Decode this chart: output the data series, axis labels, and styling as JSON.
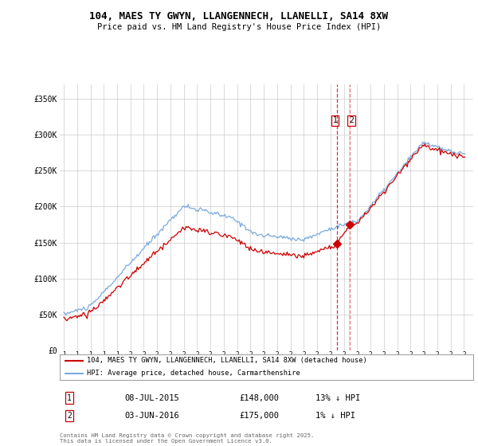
{
  "title1": "104, MAES TY GWYN, LLANGENNECH, LLANELLI, SA14 8XW",
  "title2": "Price paid vs. HM Land Registry's House Price Index (HPI)",
  "legend_label_red": "104, MAES TY GWYN, LLANGENNECH, LLANELLI, SA14 8XW (detached house)",
  "legend_label_blue": "HPI: Average price, detached house, Carmarthenshire",
  "purchase1_date": "08-JUL-2015",
  "purchase1_price": 148000,
  "purchase1_label": "13% ↓ HPI",
  "purchase2_date": "03-JUN-2016",
  "purchase2_price": 175000,
  "purchase2_label": "1% ↓ HPI",
  "footer": "Contains HM Land Registry data © Crown copyright and database right 2025.\nThis data is licensed under the Open Government Licence v3.0.",
  "red_color": "#cc0000",
  "blue_color": "#7aaadd",
  "background_color": "#ffffff",
  "grid_color": "#cccccc",
  "ylim": [
    0,
    370000
  ],
  "yticks": [
    0,
    50000,
    100000,
    150000,
    200000,
    250000,
    300000,
    350000
  ],
  "ytick_labels": [
    "£0",
    "£50K",
    "£100K",
    "£150K",
    "£200K",
    "£250K",
    "£300K",
    "£350K"
  ]
}
